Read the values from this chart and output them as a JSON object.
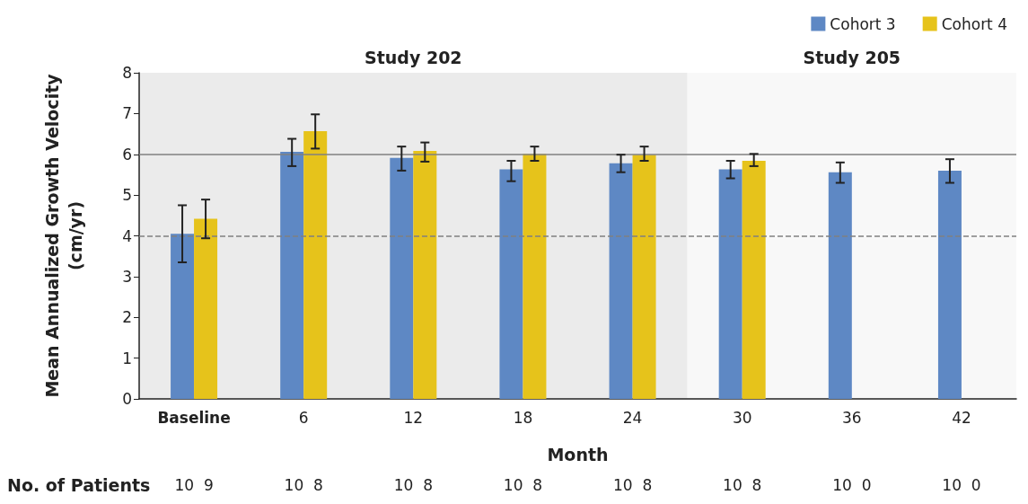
{
  "chart_data": {
    "type": "bar",
    "categories": [
      "Baseline",
      "6",
      "12",
      "18",
      "24",
      "30",
      "36",
      "42"
    ],
    "series": [
      {
        "name": "Cohort 3",
        "color": "#5e88c4",
        "values": [
          4.05,
          6.06,
          5.91,
          5.63,
          5.78,
          5.63,
          5.56,
          5.6
        ],
        "errors": [
          [
            3.35,
            4.75
          ],
          [
            5.71,
            6.38
          ],
          [
            5.6,
            6.19
          ],
          [
            5.34,
            5.84
          ],
          [
            5.56,
            5.99
          ],
          [
            5.41,
            5.84
          ],
          [
            5.3,
            5.8
          ],
          [
            5.3,
            5.88
          ]
        ]
      },
      {
        "name": "Cohort 4",
        "color": "#e6c31b",
        "values": [
          4.42,
          6.57,
          6.08,
          6.01,
          5.99,
          5.84,
          null,
          null
        ],
        "errors": [
          [
            3.94,
            4.89
          ],
          [
            6.14,
            6.98
          ],
          [
            5.82,
            6.29
          ],
          [
            5.84,
            6.19
          ],
          [
            5.84,
            6.19
          ],
          [
            5.71,
            6.01
          ],
          null,
          null
        ]
      }
    ],
    "xlabel": "Month",
    "ylabel": "Mean Annualized Growth Velocity\n(cm/yr)",
    "ylim": [
      0,
      8
    ],
    "yticks": [
      0,
      1,
      2,
      3,
      4,
      5,
      6,
      7,
      8
    ],
    "ref_lines": [
      {
        "axis": "y",
        "value": 6,
        "color": "#808080",
        "line_style": "solid"
      },
      {
        "axis": "y",
        "value": 4,
        "color": "#808080",
        "line_style": "dashed"
      }
    ],
    "bands": [
      {
        "axis": "x",
        "from": "Baseline",
        "to": "24",
        "label": "Study 202",
        "color": "#ebebeb"
      },
      {
        "axis": "x",
        "from": "30",
        "to": "42",
        "label": "Study 205",
        "color": "#f8f8f8"
      }
    ],
    "annotations": [
      "No. of Patients",
      "10  9",
      "10  8",
      "10  8",
      "10  8",
      "10  8",
      "10  8",
      "10  0",
      "10  0"
    ],
    "legend": "top right",
    "grid": false
  }
}
